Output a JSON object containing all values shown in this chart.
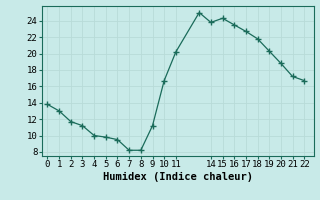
{
  "x": [
    0,
    1,
    2,
    3,
    4,
    5,
    6,
    7,
    8,
    9,
    10,
    11,
    13,
    14,
    15,
    16,
    17,
    18,
    19,
    20,
    21,
    22
  ],
  "y": [
    13.8,
    13.0,
    11.7,
    11.2,
    10.0,
    9.8,
    9.5,
    8.2,
    8.2,
    11.2,
    16.7,
    20.2,
    25.0,
    23.8,
    24.3,
    23.5,
    22.7,
    21.8,
    20.3,
    18.8,
    17.2,
    16.7
  ],
  "line_color": "#1a6b5a",
  "marker": "+",
  "marker_size": 4,
  "marker_lw": 1.0,
  "line_width": 0.9,
  "bg_color": "#c8eae8",
  "grid_color": "#b8dbd8",
  "xlabel": "Humidex (Indice chaleur)",
  "xlim": [
    -0.5,
    22.8
  ],
  "ylim": [
    7.5,
    25.8
  ],
  "yticks": [
    8,
    10,
    12,
    14,
    16,
    18,
    20,
    22,
    24
  ],
  "xtick_positions": [
    0,
    1,
    2,
    3,
    4,
    5,
    6,
    7,
    8,
    9,
    10,
    11,
    14,
    15,
    16,
    17,
    18,
    19,
    20,
    21,
    22
  ],
  "xtick_labels": [
    "0",
    "1",
    "2",
    "3",
    "4",
    "5",
    "6",
    "7",
    "8",
    "9",
    "10",
    "11",
    "14",
    "15",
    "16",
    "17",
    "18",
    "19",
    "20",
    "21",
    "22"
  ],
  "tick_fontsize": 6.5,
  "label_fontsize": 7.5,
  "spine_color": "#1a6b5a"
}
